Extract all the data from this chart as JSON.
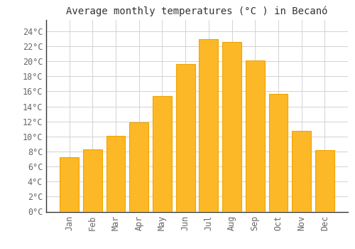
{
  "title": "Average monthly temperatures (°C ) in Becanó",
  "months": [
    "Jan",
    "Feb",
    "Mar",
    "Apr",
    "May",
    "Jun",
    "Jul",
    "Aug",
    "Sep",
    "Oct",
    "Nov",
    "Dec"
  ],
  "values": [
    7.2,
    8.3,
    10.1,
    11.9,
    15.4,
    19.6,
    22.9,
    22.6,
    20.1,
    15.7,
    10.7,
    8.2
  ],
  "bar_color": "#FDB827",
  "bar_edge_color": "#F0A500",
  "background_color": "#FFFFFF",
  "plot_bg_color": "#FFFFFF",
  "grid_color": "#CCCCCC",
  "ytick_labels": [
    "0°C",
    "2°C",
    "4°C",
    "6°C",
    "8°C",
    "10°C",
    "12°C",
    "14°C",
    "16°C",
    "18°C",
    "20°C",
    "22°C",
    "24°C"
  ],
  "ytick_values": [
    0,
    2,
    4,
    6,
    8,
    10,
    12,
    14,
    16,
    18,
    20,
    22,
    24
  ],
  "ylim": [
    0,
    25.5
  ],
  "title_fontsize": 10,
  "tick_fontsize": 8.5,
  "title_color": "#333333",
  "tick_color": "#666666",
  "spine_color": "#333333",
  "bar_width": 0.82
}
